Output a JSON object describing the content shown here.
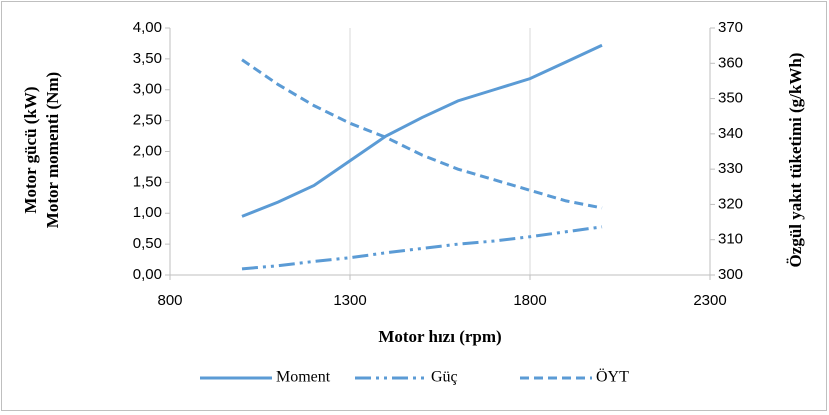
{
  "chart_data": {
    "type": "line",
    "xlabel": "Motor hızı (rpm)",
    "ylabel": [
      "Motor gücü (kW)",
      "Motor momenti (Nm)"
    ],
    "y2label": "Özgül yakıt tüketimi (g/kWh)",
    "x": [
      1000,
      1100,
      1200,
      1300,
      1400,
      1500,
      1600,
      1700,
      1800,
      1900,
      2000
    ],
    "series": [
      {
        "name": "Moment",
        "color": "#5b9bd5",
        "dash": "solid",
        "values": [
          0.95,
          1.18,
          1.45,
          1.85,
          2.25,
          2.55,
          2.82,
          3.0,
          3.18,
          3.45,
          3.72
        ]
      },
      {
        "name": "Güç",
        "color": "#5b9bd5",
        "dash": "dashdotdot",
        "values": [
          0.1,
          0.15,
          0.22,
          0.28,
          0.36,
          0.43,
          0.5,
          0.55,
          0.62,
          0.7,
          0.78
        ]
      },
      {
        "name": "ÖYT",
        "color": "#5b9bd5",
        "dash": "dashed",
        "axis": "y2",
        "values": [
          361,
          354,
          348,
          343,
          339,
          334,
          330,
          327,
          324,
          321,
          319
        ]
      }
    ],
    "xlim": [
      800,
      2300
    ],
    "xticks": [
      800,
      1300,
      1800,
      2300
    ],
    "ylim": [
      0,
      4
    ],
    "yticks": [
      {
        "value": 0,
        "label": "0,00"
      },
      {
        "value": 0.5,
        "label": "0,50"
      },
      {
        "value": 1,
        "label": "1,00"
      },
      {
        "value": 1.5,
        "label": "1,50"
      },
      {
        "value": 2,
        "label": "2,00"
      },
      {
        "value": 2.5,
        "label": "2,50"
      },
      {
        "value": 3,
        "label": "3,00"
      },
      {
        "value": 3.5,
        "label": "3,50"
      },
      {
        "value": 4,
        "label": "4,00"
      }
    ],
    "y2lim": [
      300,
      370
    ],
    "y2ticks": [
      300,
      310,
      320,
      330,
      340,
      350,
      360,
      370
    ],
    "xgrid": true,
    "legend": "bottom"
  }
}
